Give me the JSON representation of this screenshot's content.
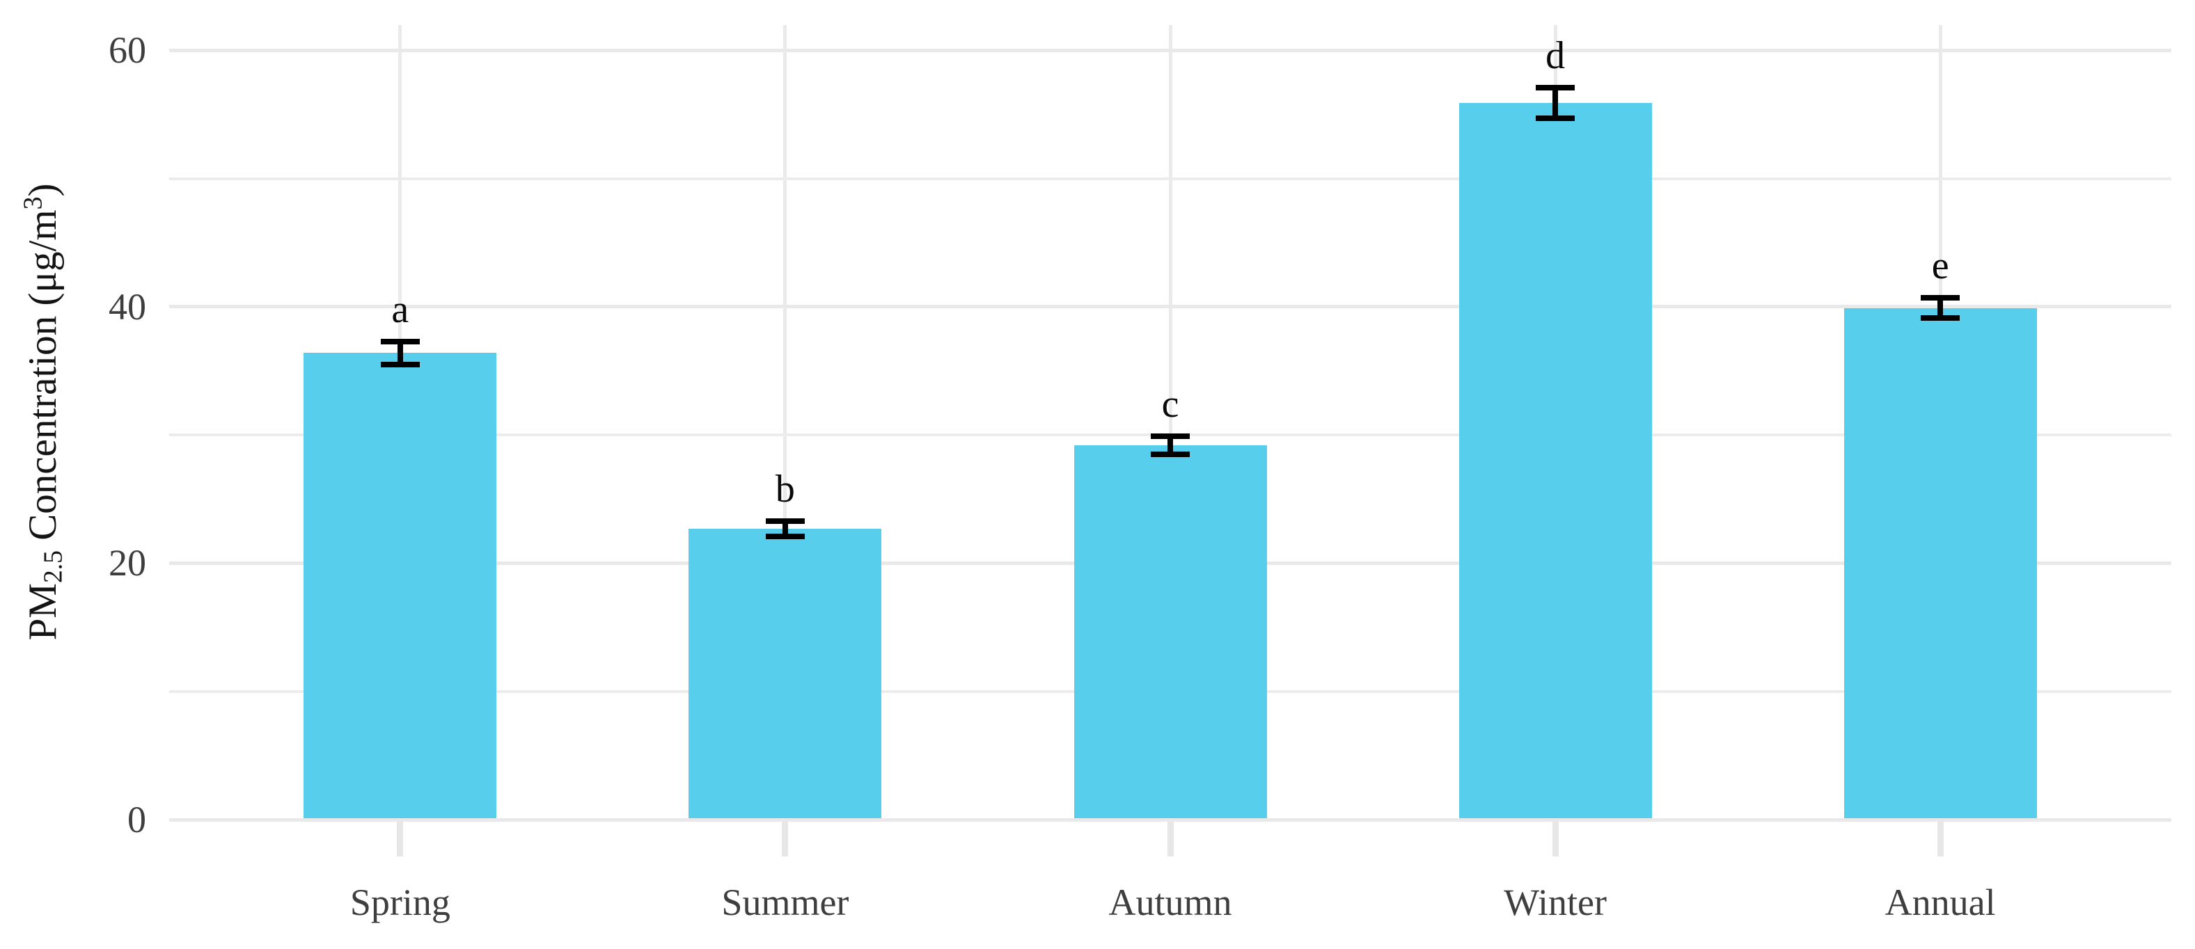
{
  "figure": {
    "background": "#ffffff"
  },
  "chart_data": {
    "type": "bar",
    "title": "",
    "xlabel": "",
    "ylabel": "PM2.5 Concentration (μg/m³)",
    "ylabel_parts": {
      "prefix": "PM",
      "subscript": "2.5",
      "middle": " Concentration (μg/m",
      "superscript": "3",
      "suffix": ")"
    },
    "categories": [
      "Spring",
      "Summer",
      "Autumn",
      "Winter",
      "Annual"
    ],
    "values": [
      36.4,
      22.7,
      29.2,
      55.9,
      39.9
    ],
    "errors": [
      0.9,
      0.6,
      0.7,
      1.2,
      0.8
    ],
    "significance_letters": [
      "a",
      "b",
      "c",
      "d",
      "e"
    ],
    "ylim": [
      0,
      60
    ],
    "yticks": [
      0,
      20,
      40,
      60
    ],
    "yticks_minor": [
      10,
      30,
      50
    ],
    "legend": "none",
    "grid": "horizontal major and minor, vertical at category centers",
    "colors": {
      "bar_fill": "#57CEEC",
      "error_bar": "#000000",
      "gridline": "#E9E9E9",
      "axis_text": "#3E3E3E",
      "letter_text": "#0a0a0a"
    }
  }
}
